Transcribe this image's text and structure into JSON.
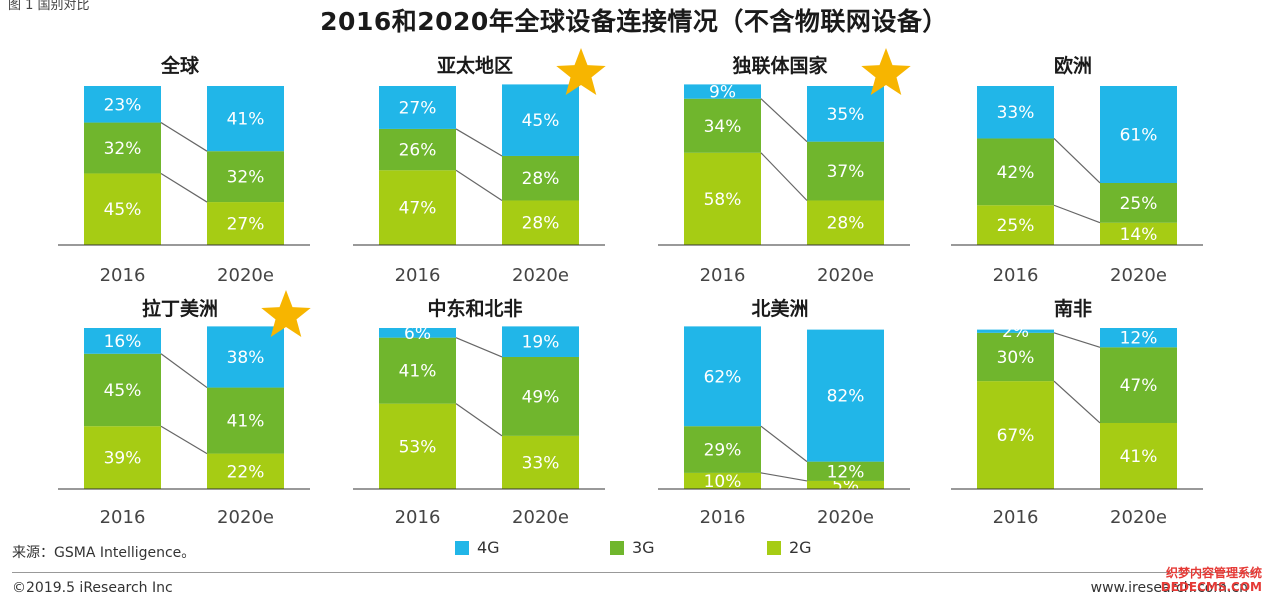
{
  "corner_label": "图 1 国别对比",
  "title": "2016和2020年全球设备连接情况（不含物联网设备）",
  "source": "来源：GSMA Intelligence。",
  "copyright": "©2019.5 iResearch Inc",
  "website": "www.iresearch.com.cn",
  "watermark": {
    "line1": "织梦内容管理系统",
    "line2": "DEDECMS.COM"
  },
  "colors": {
    "4G": "#21b6e8",
    "3G": "#70b62d",
    "2G": "#a6cc14",
    "star": "#f7b500",
    "connector": "#666666",
    "axis": "#333333"
  },
  "chart_data": {
    "type": "bar",
    "stacked": true,
    "percent": true,
    "series_order_bottom_to_top": [
      "2G",
      "3G",
      "4G"
    ],
    "legend": [
      "4G",
      "3G",
      "2G"
    ],
    "panels": [
      {
        "title": "全球",
        "star": false,
        "categories": [
          "2016",
          "2020e"
        ],
        "series": [
          {
            "name": "4G",
            "values": [
              23,
              41
            ]
          },
          {
            "name": "3G",
            "values": [
              32,
              32
            ]
          },
          {
            "name": "2G",
            "values": [
              45,
              27
            ]
          }
        ]
      },
      {
        "title": "亚太地区",
        "star": true,
        "categories": [
          "2016",
          "2020e"
        ],
        "series": [
          {
            "name": "4G",
            "values": [
              27,
              45
            ]
          },
          {
            "name": "3G",
            "values": [
              26,
              28
            ]
          },
          {
            "name": "2G",
            "values": [
              47,
              28
            ]
          }
        ]
      },
      {
        "title": "独联体国家",
        "star": true,
        "categories": [
          "2016",
          "2020e"
        ],
        "series": [
          {
            "name": "4G",
            "values": [
              9,
              35
            ]
          },
          {
            "name": "3G",
            "values": [
              34,
              37
            ]
          },
          {
            "name": "2G",
            "values": [
              58,
              28
            ]
          }
        ]
      },
      {
        "title": "欧洲",
        "star": false,
        "categories": [
          "2016",
          "2020e"
        ],
        "series": [
          {
            "name": "4G",
            "values": [
              33,
              61
            ]
          },
          {
            "name": "3G",
            "values": [
              42,
              25
            ]
          },
          {
            "name": "2G",
            "values": [
              25,
              14
            ]
          }
        ]
      },
      {
        "title": "拉丁美洲",
        "star": true,
        "categories": [
          "2016",
          "2020e"
        ],
        "series": [
          {
            "name": "4G",
            "values": [
              16,
              38
            ]
          },
          {
            "name": "3G",
            "values": [
              45,
              41
            ]
          },
          {
            "name": "2G",
            "values": [
              39,
              22
            ]
          }
        ]
      },
      {
        "title": "中东和北非",
        "star": false,
        "categories": [
          "2016",
          "2020e"
        ],
        "series": [
          {
            "name": "4G",
            "values": [
              6,
              19
            ]
          },
          {
            "name": "3G",
            "values": [
              41,
              49
            ]
          },
          {
            "name": "2G",
            "values": [
              53,
              33
            ]
          }
        ]
      },
      {
        "title": "北美洲",
        "star": false,
        "categories": [
          "2016",
          "2020e"
        ],
        "series": [
          {
            "name": "4G",
            "values": [
              62,
              82
            ]
          },
          {
            "name": "3G",
            "values": [
              29,
              12
            ]
          },
          {
            "name": "2G",
            "values": [
              10,
              5
            ]
          }
        ]
      },
      {
        "title": "南非",
        "star": false,
        "categories": [
          "2016",
          "2020e"
        ],
        "series": [
          {
            "name": "4G",
            "values": [
              2,
              12
            ]
          },
          {
            "name": "3G",
            "values": [
              30,
              47
            ]
          },
          {
            "name": "2G",
            "values": [
              67,
              41
            ]
          }
        ]
      }
    ]
  }
}
